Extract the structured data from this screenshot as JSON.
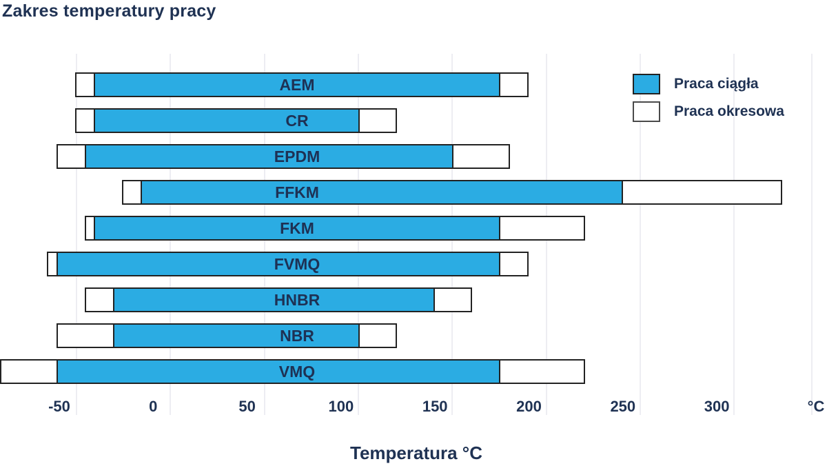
{
  "title": "Zakres temperatury pracy",
  "legend": {
    "items": [
      {
        "label": "Praca ciągła",
        "swatch": "blue-filled-square-icon"
      },
      {
        "label": "Praca okresowa",
        "swatch": "white-outlined-square-icon"
      }
    ]
  },
  "axis": {
    "title": "Temperatura °C",
    "unit_label": "°C"
  },
  "colors": {
    "continuous_fill": "#2BACE3",
    "intermittent_fill": "#FFFFFF",
    "bar_border": "#222222",
    "text_navy": "#1F3253",
    "gridline": "#EDEDF2",
    "background": "#FFFFFF"
  },
  "chart_data": {
    "type": "bar",
    "subtype": "horizontal-range-bars",
    "title": "Zakres temperatury pracy",
    "xlabel": "Temperatura °C",
    "x_unit": "°C",
    "x_ticks": [
      -50,
      0,
      50,
      100,
      150,
      200,
      250,
      300
    ],
    "xlim": [
      -95,
      352
    ],
    "grid": "vertical-at-ticks",
    "legend_position": "top-right",
    "legend": [
      "Praca ciągła",
      "Praca okresowa"
    ],
    "categories": [
      "AEM",
      "CR",
      "EPDM",
      "FFKM",
      "FKM",
      "FVMQ",
      "HNBR",
      "NBR",
      "VMQ"
    ],
    "series": [
      {
        "name": "Praca ciągła",
        "unit": "°C",
        "ranges": [
          [
            -40,
            175
          ],
          [
            -40,
            100
          ],
          [
            -45,
            150
          ],
          [
            -15,
            240
          ],
          [
            -40,
            175
          ],
          [
            -60,
            175
          ],
          [
            -30,
            140
          ],
          [
            -30,
            100
          ],
          [
            -60,
            175
          ]
        ]
      },
      {
        "name": "Praca okresowa",
        "unit": "°C",
        "ranges": [
          [
            -50,
            190
          ],
          [
            -50,
            120
          ],
          [
            -60,
            180
          ],
          [
            -25,
            325
          ],
          [
            -45,
            220
          ],
          [
            -65,
            190
          ],
          [
            -45,
            160
          ],
          [
            -60,
            120
          ],
          [
            -90,
            220
          ]
        ]
      }
    ]
  }
}
